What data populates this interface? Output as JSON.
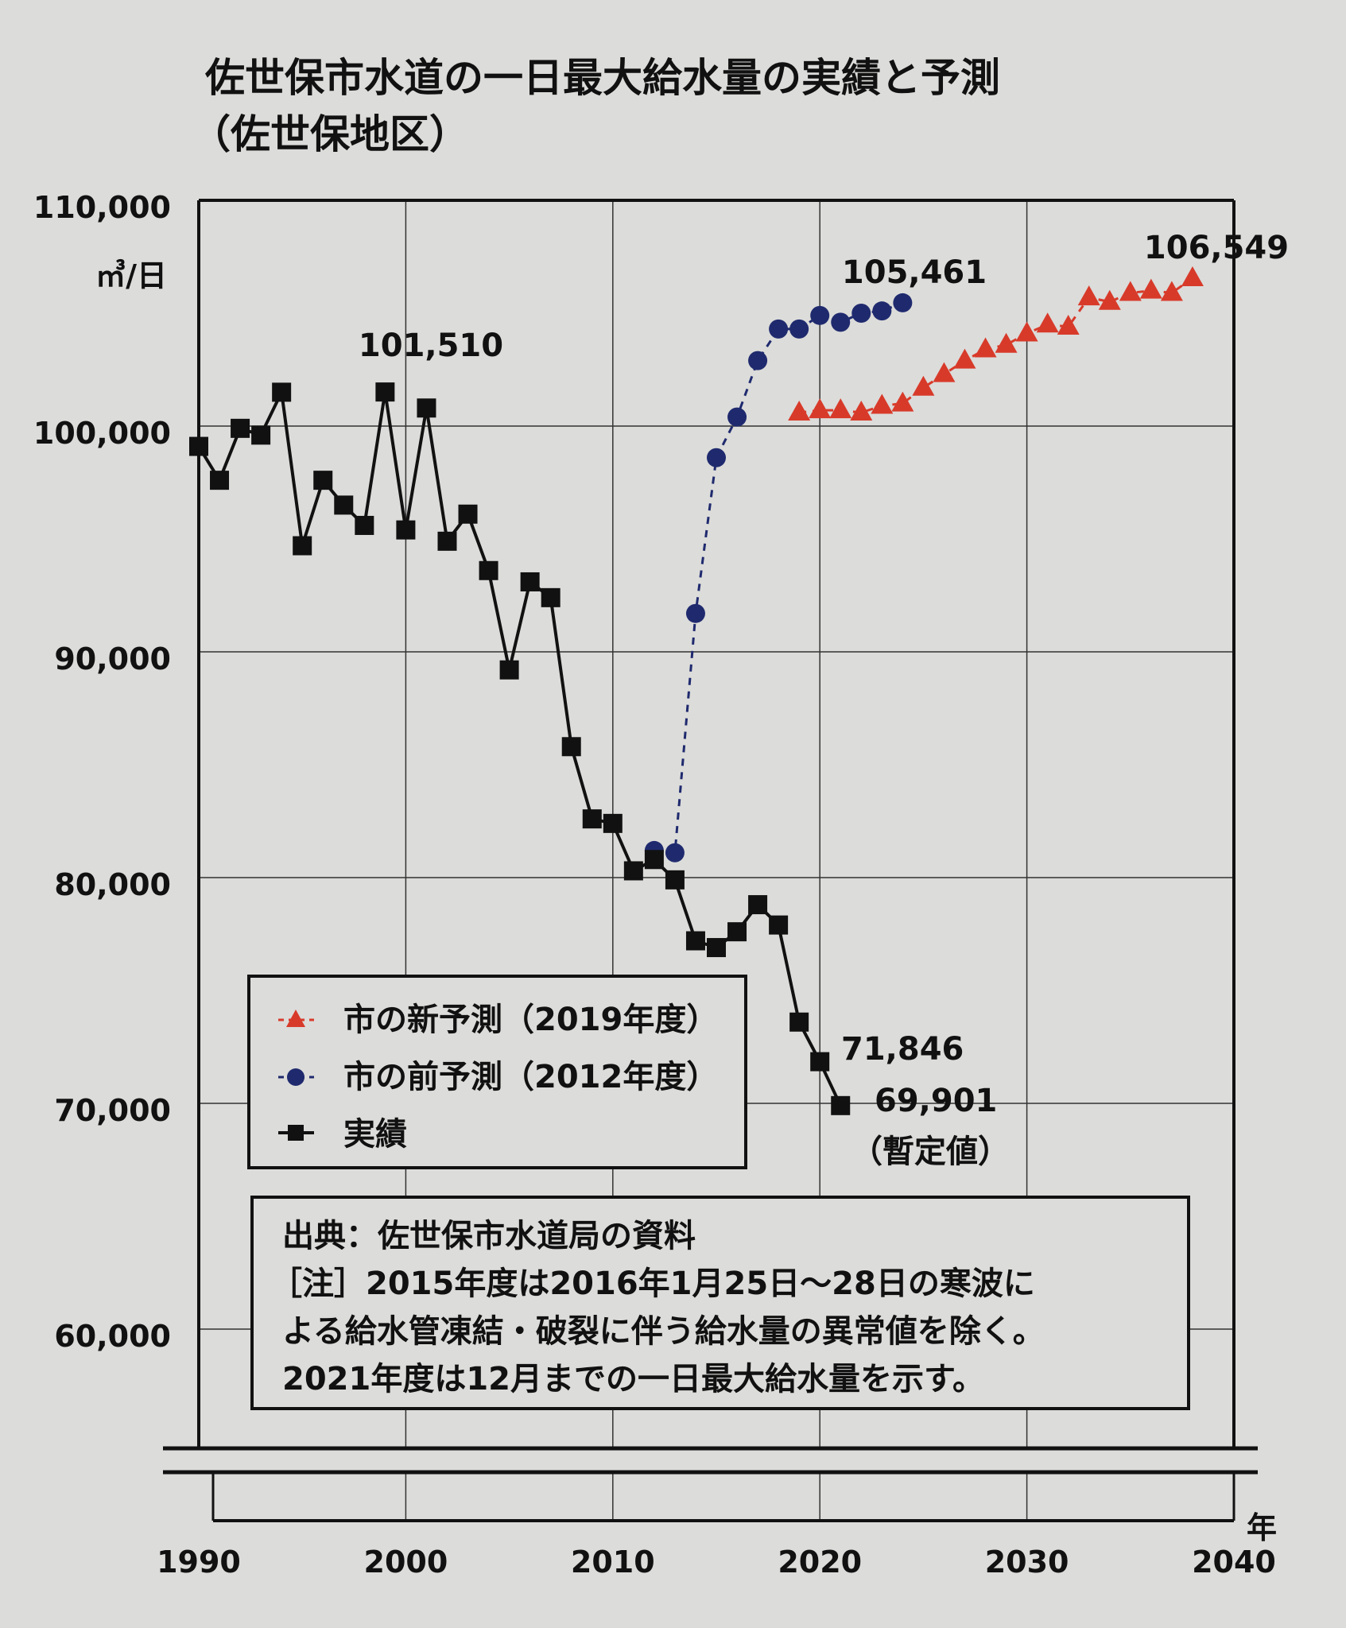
{
  "chart_data": {
    "type": "line",
    "title": "佐世保市水道の一日最大給水量の実績と予測",
    "subtitle": "（佐世保地区）",
    "ylabel": "㎥/日",
    "xlabel": "年",
    "xlim": [
      1990,
      2040
    ],
    "ylim": [
      60000,
      110000
    ],
    "y_axis_break_below": 60000,
    "grid": true,
    "x_ticks": [
      "1990",
      "2000",
      "2010",
      "2020",
      "2030",
      "2040"
    ],
    "y_ticks": [
      "110,000",
      "100,000",
      "90,000",
      "80,000",
      "70,000",
      "60,000"
    ],
    "legend_placement": "bottom-left",
    "series": [
      {
        "name": "市の新予測（2019年度）",
        "color": "#d83a2a",
        "marker": "triangle",
        "line": "dashed",
        "x": [
          2019,
          2020,
          2021,
          2022,
          2023,
          2024,
          2025,
          2026,
          2027,
          2028,
          2029,
          2030,
          2031,
          2032,
          2033,
          2034,
          2035,
          2036,
          2037,
          2038
        ],
        "values": [
          100600,
          100700,
          100700,
          100600,
          100900,
          101000,
          101700,
          102300,
          102900,
          103400,
          103600,
          104100,
          104500,
          104400,
          105700,
          105500,
          105900,
          106000,
          105900,
          106549
        ]
      },
      {
        "name": "市の前予測（2012年度）",
        "color": "#1f2a6e",
        "marker": "circle",
        "line": "dashed",
        "x": [
          2012,
          2013,
          2014,
          2015,
          2016,
          2017,
          2018,
          2019,
          2020,
          2021,
          2022,
          2023,
          2024
        ],
        "values": [
          81200,
          81100,
          91700,
          98600,
          100400,
          102900,
          104300,
          104300,
          104900,
          104600,
          105000,
          105100,
          105461
        ]
      },
      {
        "name": "実績",
        "color": "#111111",
        "marker": "square",
        "line": "solid",
        "x": [
          1990,
          1991,
          1992,
          1993,
          1994,
          1995,
          1996,
          1997,
          1998,
          1999,
          2000,
          2001,
          2002,
          2003,
          2004,
          2005,
          2006,
          2007,
          2008,
          2009,
          2010,
          2011,
          2012,
          2013,
          2014,
          2015,
          2016,
          2017,
          2018,
          2019,
          2020,
          2021
        ],
        "values": [
          99100,
          97600,
          99900,
          99600,
          101500,
          94700,
          97600,
          96500,
          95600,
          101510,
          95400,
          100800,
          94900,
          96100,
          93600,
          89200,
          93100,
          92400,
          85800,
          82600,
          82400,
          80300,
          80800,
          79900,
          77200,
          76900,
          77600,
          78800,
          77900,
          73600,
          71846,
          69901
        ]
      }
    ],
    "annotations": [
      {
        "text": "101,510",
        "x": 1999,
        "y": 101510
      },
      {
        "text": "105,461",
        "x": 2024,
        "y": 105461
      },
      {
        "text": "106,549",
        "x": 2038,
        "y": 106549
      },
      {
        "text": "71,846",
        "x": 2020,
        "y": 71846
      },
      {
        "text": "69,901",
        "x": 2021,
        "y": 69901
      },
      {
        "text": "（暫定値）",
        "x": 2021,
        "y": 69901
      }
    ],
    "note": {
      "source": "出典：佐世保市水道局の資料",
      "lines": [
        "［注］2015年度は2016年1月25日～28日の寒波に",
        "よる給水管凍結・破裂に伴う給水量の異常値を除く。",
        "2021年度は12月までの一日最大給水量を示す。"
      ]
    }
  }
}
